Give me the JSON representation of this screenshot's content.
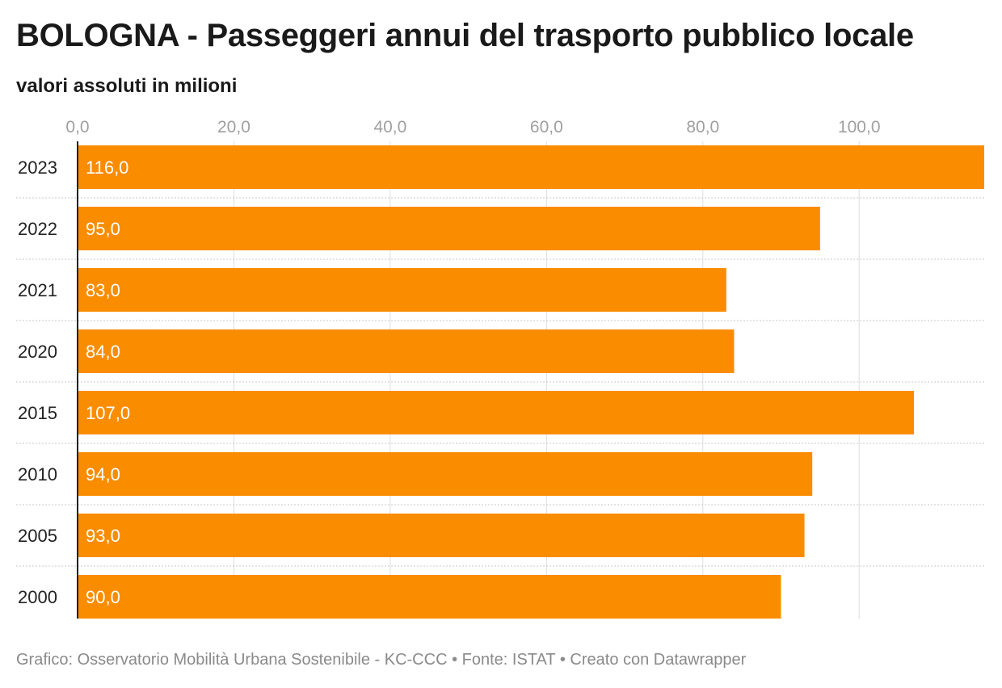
{
  "colors": {
    "bar": "#fa8c00",
    "grid": "#dddddd",
    "axis": "#222222",
    "footer": "#8a8a8a"
  },
  "footer": {
    "credit": "Grafico: Osservatorio Mobilità Urbana Sostenibile - KC-CCC",
    "sep1": "•",
    "source": "Fonte: ISTAT",
    "sep2": "•",
    "tool": "Creato con Datawrapper"
  },
  "chart_data": {
    "type": "bar",
    "orientation": "horizontal",
    "title": "BOLOGNA - Passeggeri annui del trasporto pubblico locale",
    "subtitle": "valori assoluti in milioni",
    "categories": [
      "2023",
      "2022",
      "2021",
      "2020",
      "2015",
      "2010",
      "2005",
      "2000"
    ],
    "values": [
      116,
      95,
      83,
      84,
      107,
      94,
      93,
      90
    ],
    "value_labels": [
      "116,0",
      "95,0",
      "83,0",
      "84,0",
      "107,0",
      "94,0",
      "93,0",
      "90,0"
    ],
    "xticks": [
      0,
      20,
      40,
      60,
      80,
      100
    ],
    "xtick_labels": [
      "0,0",
      "20,0",
      "40,0",
      "60,0",
      "80,0",
      "100,0"
    ],
    "xlim": [
      0,
      116
    ],
    "xlabel": "",
    "ylabel": "",
    "grid": true,
    "legend": "none"
  }
}
